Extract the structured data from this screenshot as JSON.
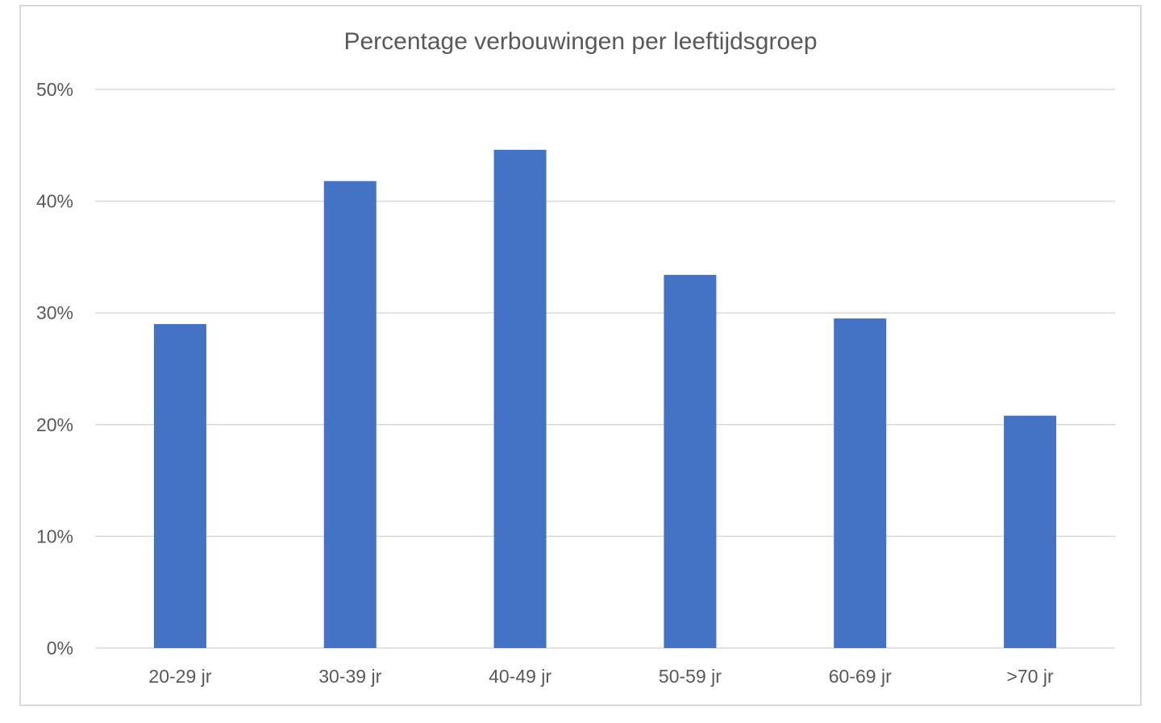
{
  "chart_data": {
    "type": "bar",
    "title": "Percentage verbouwingen per leeftijdsgroep",
    "xlabel": "",
    "ylabel": "",
    "categories": [
      "20-29 jr",
      "30-39 jr",
      "40-49 jr",
      "50-59 jr",
      "60-69 jr",
      ">70 jr"
    ],
    "values": [
      0.29,
      0.418,
      0.446,
      0.334,
      0.295,
      0.208
    ],
    "ylim": [
      0,
      0.5
    ],
    "yticks": [
      0,
      0.1,
      0.2,
      0.3,
      0.4,
      0.5
    ],
    "ytick_labels": [
      "0%",
      "10%",
      "20%",
      "30%",
      "40%",
      "50%"
    ],
    "grid": true,
    "legend": "none",
    "colors": {
      "bar": "#4472c4",
      "grid": "#d9d9d9",
      "text": "#595959",
      "frame": "#d9d9d9"
    }
  }
}
